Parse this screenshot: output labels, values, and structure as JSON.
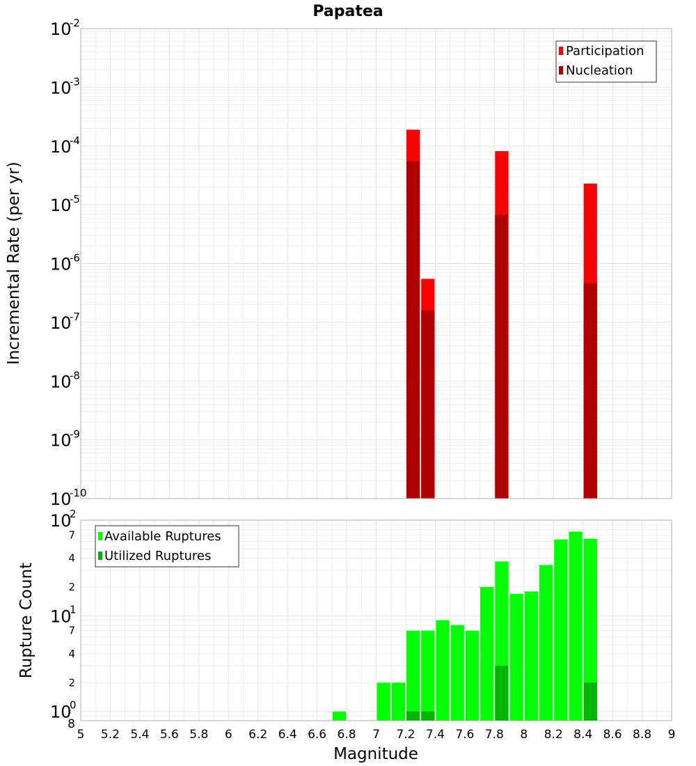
{
  "chart_data": [
    {
      "type": "bar",
      "title": "Papatea",
      "ylabel": "Incremental Rate (per yr)",
      "xlabel": "",
      "yscale": "log",
      "ylim": [
        1e-10,
        0.01
      ],
      "xlim": [
        5,
        9
      ],
      "bar_width": 0.1,
      "y_tick_base": "10",
      "y_tick_exponents": [
        "-10",
        "-9",
        "-8",
        "-7",
        "-6",
        "-5",
        "-4",
        "-3",
        "-2"
      ],
      "legend": {
        "placement": "top-right",
        "entries": [
          "Participation",
          "Nucleation"
        ]
      },
      "colors": {
        "Participation": "#ff0000",
        "Nucleation": "#b00000"
      },
      "series": [
        {
          "name": "Participation",
          "x": [
            7.25,
            7.35,
            7.85,
            8.45
          ],
          "values": [
            0.00019,
            5.5e-07,
            8.2e-05,
            2.3e-05
          ]
        },
        {
          "name": "Nucleation",
          "x": [
            7.25,
            7.35,
            7.85,
            8.45
          ],
          "values": [
            5.5e-05,
            1.6e-07,
            6.8e-06,
            4.6e-07
          ]
        }
      ]
    },
    {
      "type": "bar",
      "xlabel": "Magnitude",
      "ylabel": "Rupture Count",
      "yscale": "log",
      "ylim": [
        0.8,
        100
      ],
      "xlim": [
        5,
        9
      ],
      "bar_width": 0.1,
      "x_tick_labels": [
        "5",
        "5.2",
        "5.4",
        "5.6",
        "5.8",
        "6",
        "6.2",
        "6.4",
        "6.6",
        "6.8",
        "7",
        "7.2",
        "7.4",
        "7.6",
        "7.8",
        "8",
        "8.2",
        "8.4",
        "8.6",
        "8.8",
        "9"
      ],
      "y_major_ticks": [
        {
          "value": 1,
          "base": "10",
          "exp": "0"
        },
        {
          "value": 10,
          "base": "10",
          "exp": "1"
        },
        {
          "value": 100,
          "base": "10",
          "exp": "2"
        }
      ],
      "y_minor_ticks": [
        {
          "value": 0.8,
          "label": "8"
        },
        {
          "value": 2,
          "label": "2"
        },
        {
          "value": 4,
          "label": "4"
        },
        {
          "value": 7,
          "label": "7"
        },
        {
          "value": 20,
          "label": "2"
        },
        {
          "value": 40,
          "label": "4"
        },
        {
          "value": 70,
          "label": "7"
        }
      ],
      "legend": {
        "placement": "top-left",
        "entries": [
          "Available Ruptures",
          "Utilized Ruptures"
        ]
      },
      "colors": {
        "Available Ruptures": "#00ff00",
        "Utilized Ruptures": "#00b400"
      },
      "series": [
        {
          "name": "Available Ruptures",
          "x": [
            6.75,
            7.05,
            7.15,
            7.25,
            7.35,
            7.45,
            7.55,
            7.65,
            7.75,
            7.85,
            7.95,
            8.05,
            8.15,
            8.25,
            8.35,
            8.45
          ],
          "values": [
            1,
            2,
            2,
            7,
            7,
            9,
            8,
            7,
            20,
            37,
            17,
            18,
            34,
            63,
            76,
            64
          ]
        },
        {
          "name": "Utilized Ruptures",
          "x": [
            7.25,
            7.35,
            7.85,
            8.45
          ],
          "values": [
            1,
            1,
            3,
            2
          ]
        }
      ]
    }
  ]
}
